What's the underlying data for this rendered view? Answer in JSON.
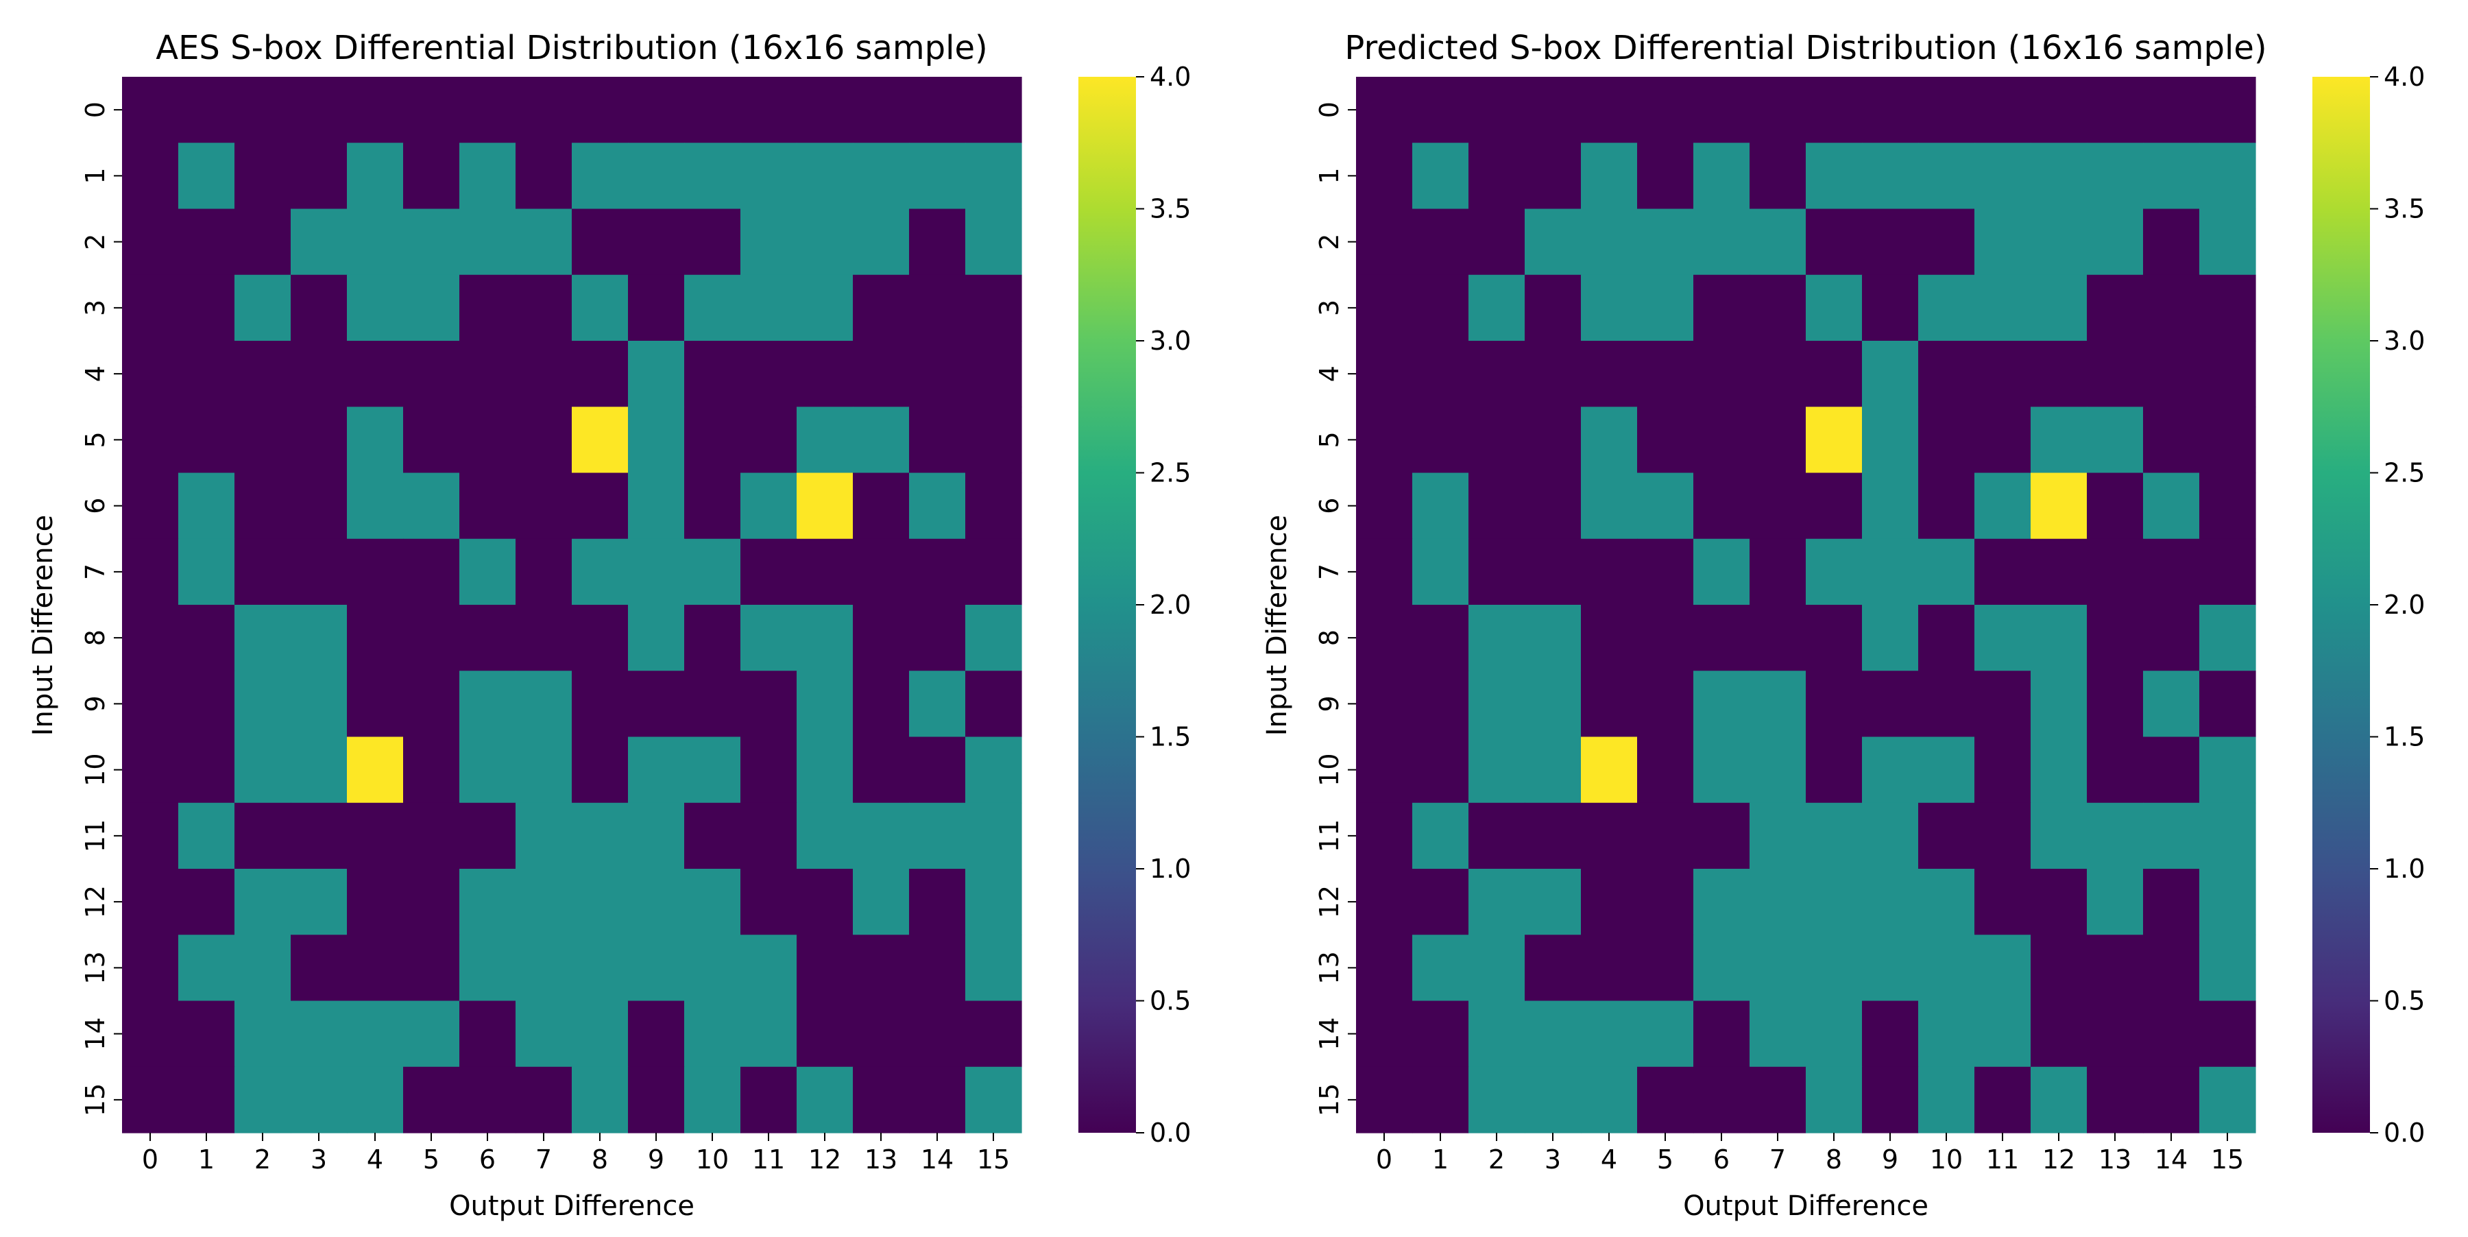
{
  "colors": {
    "background": "#ffffff",
    "text": "#000000",
    "colormap": "viridis",
    "value_0": "#440154",
    "value_2": "#21918c",
    "value_4": "#fde725"
  },
  "chart_data": [
    {
      "type": "heatmap",
      "title": "AES S-box Differential Distribution (16x16 sample)",
      "xlabel": "Output Difference",
      "ylabel": "Input Difference",
      "x_categories": [
        "0",
        "1",
        "2",
        "3",
        "4",
        "5",
        "6",
        "7",
        "8",
        "9",
        "10",
        "11",
        "12",
        "13",
        "14",
        "15"
      ],
      "y_categories": [
        "0",
        "1",
        "2",
        "3",
        "4",
        "5",
        "6",
        "7",
        "8",
        "9",
        "10",
        "11",
        "12",
        "13",
        "14",
        "15"
      ],
      "colorbar": {
        "min": 0,
        "max": 4,
        "ticks": [
          "0.0",
          "0.5",
          "1.0",
          "1.5",
          "2.0",
          "2.5",
          "3.0",
          "3.5",
          "4.0"
        ]
      },
      "values": [
        [
          0,
          0,
          0,
          0,
          0,
          0,
          0,
          0,
          0,
          0,
          0,
          0,
          0,
          0,
          0,
          0
        ],
        [
          0,
          2,
          0,
          0,
          2,
          0,
          2,
          0,
          2,
          2,
          2,
          2,
          2,
          2,
          2,
          2
        ],
        [
          0,
          0,
          0,
          2,
          2,
          2,
          2,
          2,
          0,
          0,
          0,
          2,
          2,
          2,
          0,
          2
        ],
        [
          0,
          0,
          2,
          0,
          2,
          2,
          0,
          0,
          2,
          0,
          2,
          2,
          2,
          0,
          0,
          0
        ],
        [
          0,
          0,
          0,
          0,
          0,
          0,
          0,
          0,
          0,
          2,
          0,
          0,
          0,
          0,
          0,
          0
        ],
        [
          0,
          0,
          0,
          0,
          2,
          0,
          0,
          0,
          4,
          2,
          0,
          0,
          2,
          2,
          0,
          0
        ],
        [
          0,
          2,
          0,
          0,
          2,
          2,
          0,
          0,
          0,
          2,
          0,
          2,
          4,
          0,
          2,
          0
        ],
        [
          0,
          2,
          0,
          0,
          0,
          0,
          2,
          0,
          2,
          2,
          2,
          0,
          0,
          0,
          0,
          0
        ],
        [
          0,
          0,
          2,
          2,
          0,
          0,
          0,
          0,
          0,
          2,
          0,
          2,
          2,
          0,
          0,
          2
        ],
        [
          0,
          0,
          2,
          2,
          0,
          0,
          2,
          2,
          0,
          0,
          0,
          0,
          2,
          0,
          2,
          0
        ],
        [
          0,
          0,
          2,
          2,
          4,
          0,
          2,
          2,
          0,
          2,
          2,
          0,
          2,
          0,
          0,
          2
        ],
        [
          0,
          2,
          0,
          0,
          0,
          0,
          0,
          2,
          2,
          2,
          0,
          0,
          2,
          2,
          2,
          2
        ],
        [
          0,
          0,
          2,
          2,
          0,
          0,
          2,
          2,
          2,
          2,
          2,
          0,
          0,
          2,
          0,
          2
        ],
        [
          0,
          2,
          2,
          0,
          0,
          0,
          2,
          2,
          2,
          2,
          2,
          2,
          0,
          0,
          0,
          2
        ],
        [
          0,
          0,
          2,
          2,
          2,
          2,
          0,
          2,
          2,
          0,
          2,
          2,
          0,
          0,
          0,
          0
        ],
        [
          0,
          0,
          2,
          2,
          2,
          0,
          0,
          0,
          2,
          0,
          2,
          0,
          2,
          0,
          0,
          2
        ]
      ]
    },
    {
      "type": "heatmap",
      "title": "Predicted S-box Differential Distribution (16x16 sample)",
      "xlabel": "Output Difference",
      "ylabel": "Input Difference",
      "x_categories": [
        "0",
        "1",
        "2",
        "3",
        "4",
        "5",
        "6",
        "7",
        "8",
        "9",
        "10",
        "11",
        "12",
        "13",
        "14",
        "15"
      ],
      "y_categories": [
        "0",
        "1",
        "2",
        "3",
        "4",
        "5",
        "6",
        "7",
        "8",
        "9",
        "10",
        "11",
        "12",
        "13",
        "14",
        "15"
      ],
      "colorbar": {
        "min": 0,
        "max": 4,
        "ticks": [
          "0.0",
          "0.5",
          "1.0",
          "1.5",
          "2.0",
          "2.5",
          "3.0",
          "3.5",
          "4.0"
        ]
      },
      "values": [
        [
          0,
          0,
          0,
          0,
          0,
          0,
          0,
          0,
          0,
          0,
          0,
          0,
          0,
          0,
          0,
          0
        ],
        [
          0,
          2,
          0,
          0,
          2,
          0,
          2,
          0,
          2,
          2,
          2,
          2,
          2,
          2,
          2,
          2
        ],
        [
          0,
          0,
          0,
          2,
          2,
          2,
          2,
          2,
          0,
          0,
          0,
          2,
          2,
          2,
          0,
          2
        ],
        [
          0,
          0,
          2,
          0,
          2,
          2,
          0,
          0,
          2,
          0,
          2,
          2,
          2,
          0,
          0,
          0
        ],
        [
          0,
          0,
          0,
          0,
          0,
          0,
          0,
          0,
          0,
          2,
          0,
          0,
          0,
          0,
          0,
          0
        ],
        [
          0,
          0,
          0,
          0,
          2,
          0,
          0,
          0,
          4,
          2,
          0,
          0,
          2,
          2,
          0,
          0
        ],
        [
          0,
          2,
          0,
          0,
          2,
          2,
          0,
          0,
          0,
          2,
          0,
          2,
          4,
          0,
          2,
          0
        ],
        [
          0,
          2,
          0,
          0,
          0,
          0,
          2,
          0,
          2,
          2,
          2,
          0,
          0,
          0,
          0,
          0
        ],
        [
          0,
          0,
          2,
          2,
          0,
          0,
          0,
          0,
          0,
          2,
          0,
          2,
          2,
          0,
          0,
          2
        ],
        [
          0,
          0,
          2,
          2,
          0,
          0,
          2,
          2,
          0,
          0,
          0,
          0,
          2,
          0,
          2,
          0
        ],
        [
          0,
          0,
          2,
          2,
          4,
          0,
          2,
          2,
          0,
          2,
          2,
          0,
          2,
          0,
          0,
          2
        ],
        [
          0,
          2,
          0,
          0,
          0,
          0,
          0,
          2,
          2,
          2,
          0,
          0,
          2,
          2,
          2,
          2
        ],
        [
          0,
          0,
          2,
          2,
          0,
          0,
          2,
          2,
          2,
          2,
          2,
          0,
          0,
          2,
          0,
          2
        ],
        [
          0,
          2,
          2,
          0,
          0,
          0,
          2,
          2,
          2,
          2,
          2,
          2,
          0,
          0,
          0,
          2
        ],
        [
          0,
          0,
          2,
          2,
          2,
          2,
          0,
          2,
          2,
          0,
          2,
          2,
          0,
          0,
          0,
          0
        ],
        [
          0,
          0,
          2,
          2,
          2,
          0,
          0,
          0,
          2,
          0,
          2,
          0,
          2,
          0,
          0,
          2
        ]
      ]
    }
  ]
}
